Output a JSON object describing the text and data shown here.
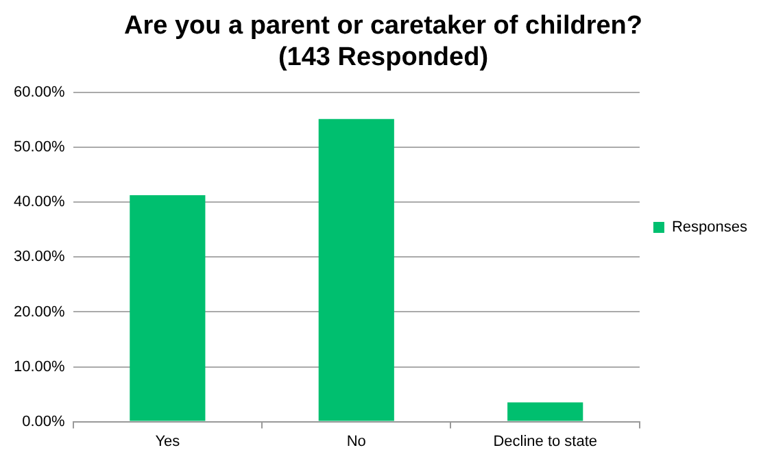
{
  "chart_data": {
    "type": "bar",
    "title": [
      "Are you a parent or caretaker of children?",
      "(143 Responded)"
    ],
    "categories": [
      "Yes",
      "No",
      "Decline to state"
    ],
    "series": [
      {
        "name": "Responses",
        "color": "#00bf6f",
        "values": [
          41.3,
          55.2,
          3.5
        ]
      }
    ],
    "ylim": [
      0,
      60
    ],
    "yticks": [
      {
        "value": 0,
        "label": "0.00%"
      },
      {
        "value": 10,
        "label": "10.00%"
      },
      {
        "value": 20,
        "label": "20.00%"
      },
      {
        "value": 30,
        "label": "30.00%"
      },
      {
        "value": 40,
        "label": "40.00%"
      },
      {
        "value": 50,
        "label": "50.00%"
      },
      {
        "value": 60,
        "label": "60.00%"
      }
    ],
    "grid": "y",
    "legend": "right"
  }
}
